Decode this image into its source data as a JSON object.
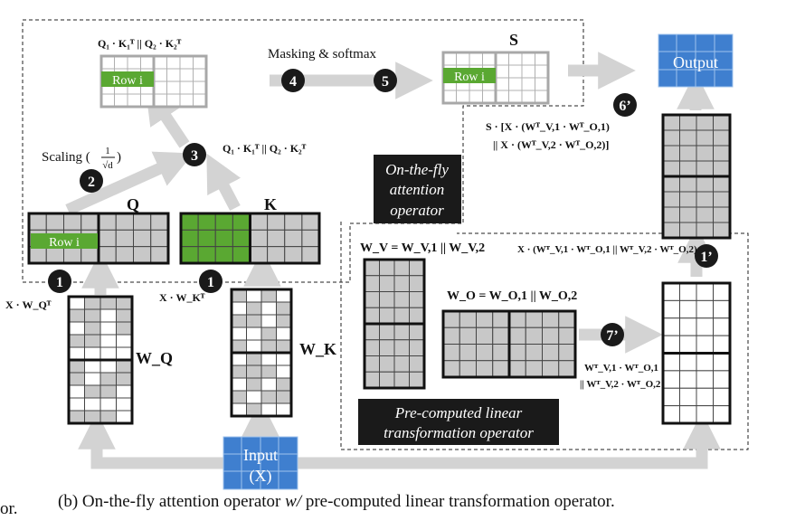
{
  "labels": {
    "qk_top": "Q₁ · K₁ᵀ || Q₂ · K₂ᵀ",
    "qk_mid": "Q₁ · K₁ᵀ || Q₂ · K₂ᵀ",
    "masking": "Masking & softmax",
    "s_title": "S",
    "row_i": "Row i",
    "scaling_prefix": "Scaling (",
    "scaling_num": "1",
    "scaling_den": "√d",
    "scaling_suffix": ")",
    "q_title": "Q",
    "k_title": "K",
    "x_wq": "X · W_Qᵀ",
    "x_wk": "X · W_Kᵀ",
    "wq": "W_Q",
    "wk": "W_K",
    "output": "Output",
    "input_line1": "Input",
    "input_line2": "(X)",
    "s_formula_line1": "S · [X · (Wᵀ_V,1 · Wᵀ_O,1)",
    "s_formula_line2": "|| X · (Wᵀ_V,2 · Wᵀ_O,2)]",
    "onfly_line1": "On-the-fly",
    "onfly_line2": "attention",
    "onfly_line3": "operator",
    "wv_eq": "W_V = W_V,1 || W_V,2",
    "wo_eq": "W_O = W_O,1 || W_O,2",
    "x_right_formula": "X · (Wᵀ_V,1 · Wᵀ_O,1 || Wᵀ_V,2 · Wᵀ_O,2)",
    "wvwo_line1": "Wᵀ_V,1 · Wᵀ_O,1",
    "wvwo_line2": "|| Wᵀ_V,2 · Wᵀ_O,2",
    "precomp_line1": "Pre-computed linear",
    "precomp_line2": "transformation operator"
  },
  "steps": {
    "s1a": "1",
    "s1b": "1",
    "s2": "2",
    "s3": "3",
    "s4": "4",
    "s5": "5",
    "s6p": "6’",
    "s7p": "7’",
    "s1p": "1’"
  },
  "caption": {
    "left_fragment": "or.",
    "prefix": "(b) On-the-fly attention operator ",
    "emph": "w/",
    "suffix": " pre-computed linear transformation operator."
  },
  "colors": {
    "green": "#5aa832",
    "blue": "#3f7fcf",
    "gray_cell": "#c8c8c8",
    "arrow": "#d3d3d3",
    "dark": "#1a1a1a"
  }
}
